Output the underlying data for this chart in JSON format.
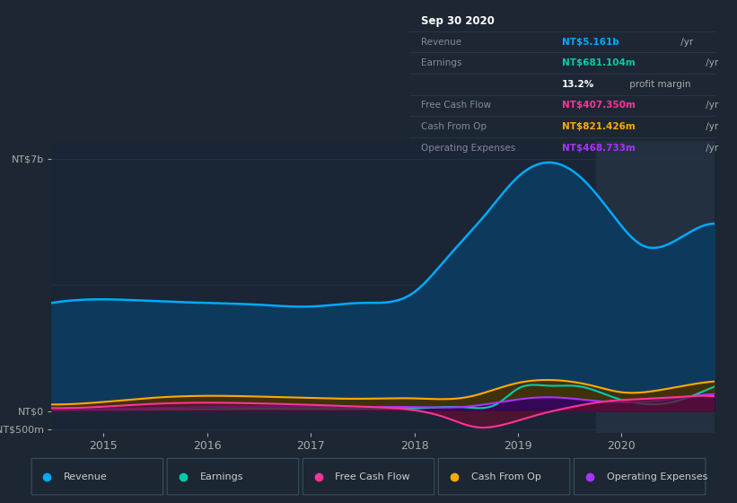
{
  "bg_color": "#1c2733",
  "plot_bg_color": "#1a2535",
  "grid_color": "#263545",
  "ylim": [
    -600,
    7500
  ],
  "xlim": [
    2014.5,
    2020.9
  ],
  "ytick_vals": [
    -500,
    0,
    7000
  ],
  "ytick_labels": [
    "-NT$500m",
    "NT$0",
    "NT$7b"
  ],
  "xlabel_years": [
    2015,
    2016,
    2017,
    2018,
    2019,
    2020
  ],
  "colors": {
    "Revenue": "#00aaff",
    "Revenue_fill": "#0d3a5c",
    "Earnings": "#00ccaa",
    "Earnings_fill": "#0d4035",
    "Free Cash Flow": "#ff3399",
    "Free Cash Flow_fill": "#5c1030",
    "Cash From Op": "#ffaa00",
    "Cash From Op_fill": "#4a3000",
    "Operating Expenses": "#aa33ff",
    "Operating Expenses_fill": "#330066"
  },
  "tooltip_bg": "#0a1018",
  "tooltip_border": "#2a3d4f",
  "shaded_region_start": 2019.75,
  "shaded_region_color": "#223040"
}
